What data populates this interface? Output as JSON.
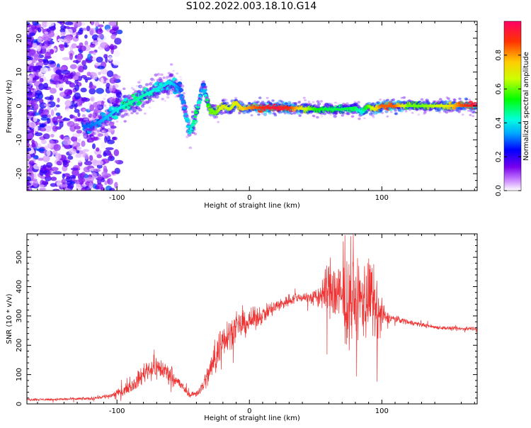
{
  "title": "S102.2022.003.18.10.G14",
  "chart_data": [
    {
      "type": "heatmap",
      "xlabel": "Height of straight line (km)",
      "ylabel": "Frequency (Hz)",
      "xlim": [
        -168,
        172
      ],
      "ylim": [
        -25,
        25
      ],
      "x_ticks": [
        -100,
        0,
        100
      ],
      "x_tick_labels": [
        "-100",
        "0",
        "100"
      ],
      "y_ticks": [
        -20,
        -10,
        0,
        10,
        20
      ],
      "y_tick_labels": [
        "-20",
        "-10",
        "0",
        "10",
        "20"
      ],
      "colorbar": {
        "label": "Normalized spectral amplitude",
        "range": [
          0,
          1
        ],
        "ticks": [
          0.0,
          0.2,
          0.4,
          0.6,
          0.8
        ],
        "tick_labels": [
          "0.0",
          "0.2",
          "0.4",
          "0.6",
          "0.8"
        ]
      },
      "ridge": {
        "x": [
          -120,
          -110,
          -100,
          -90,
          -80,
          -70,
          -60,
          -52,
          -45,
          -40,
          -35,
          -30,
          -25,
          -20,
          -15,
          -10,
          -5,
          0,
          10,
          20,
          30,
          40,
          50,
          60,
          70,
          80,
          85,
          90,
          95,
          100,
          110,
          120,
          130,
          140,
          150,
          160,
          170
        ],
        "frequency": [
          -6,
          -4,
          -1,
          1,
          3,
          5,
          7,
          5,
          -8,
          -2,
          6,
          -1,
          -2,
          0,
          -1,
          1,
          -1,
          -0.5,
          -0.5,
          -0.5,
          -0.5,
          -0.8,
          -1,
          -1,
          -1,
          -0.5,
          -2,
          0,
          -1,
          0,
          0,
          0,
          0,
          0,
          0,
          0.1,
          0.1
        ],
        "amplitude": [
          0.3,
          0.35,
          0.4,
          0.45,
          0.45,
          0.4,
          0.4,
          0.3,
          0.4,
          0.5,
          0.3,
          0.6,
          0.6,
          0.7,
          0.65,
          0.7,
          0.75,
          0.8,
          0.9,
          0.95,
          0.9,
          0.7,
          0.55,
          0.5,
          0.5,
          0.5,
          0.4,
          0.6,
          0.7,
          0.85,
          0.85,
          0.6,
          0.6,
          0.65,
          0.7,
          0.85,
          0.95
        ]
      }
    },
    {
      "type": "line",
      "xlabel": "Height of straight line (km)",
      "ylabel": "SNR (10 * v/v)",
      "xlim": [
        -168,
        172
      ],
      "ylim": [
        0,
        580
      ],
      "x_ticks": [
        -100,
        0,
        100
      ],
      "x_tick_labels": [
        "-100",
        "0",
        "100"
      ],
      "y_ticks": [
        0,
        100,
        200,
        300,
        400,
        500
      ],
      "y_tick_labels": [
        "0",
        "100",
        "200",
        "300",
        "400",
        "500"
      ],
      "color": "#ee3333",
      "envelope": {
        "x": [
          -168,
          -150,
          -120,
          -105,
          -95,
          -85,
          -78,
          -70,
          -62,
          -55,
          -45,
          -38,
          -32,
          -25,
          -20,
          -10,
          0,
          10,
          20,
          30,
          40,
          50,
          55,
          60,
          70,
          80,
          90,
          97,
          103,
          110,
          120,
          130,
          140,
          150,
          160,
          172
        ],
        "snr": [
          15,
          15,
          18,
          28,
          45,
          75,
          115,
          125,
          110,
          80,
          30,
          40,
          90,
          165,
          225,
          260,
          280,
          305,
          330,
          355,
          365,
          360,
          375,
          395,
          360,
          345,
          370,
          300,
          295,
          290,
          280,
          270,
          262,
          258,
          256,
          258
        ],
        "spread": [
          6,
          6,
          8,
          14,
          22,
          38,
          55,
          60,
          50,
          35,
          12,
          22,
          55,
          95,
          90,
          70,
          60,
          45,
          40,
          30,
          25,
          45,
          90,
          160,
          190,
          200,
          210,
          180,
          30,
          18,
          14,
          12,
          10,
          10,
          10,
          10
        ]
      }
    }
  ]
}
